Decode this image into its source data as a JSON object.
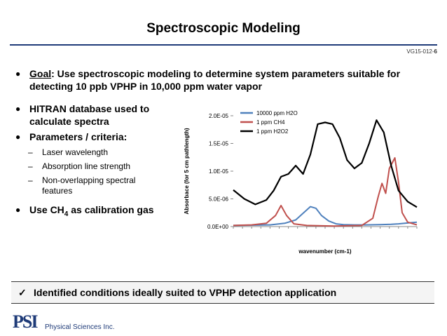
{
  "title": "Spectroscopic Modeling",
  "slide_id_prefix": "VG15-012-",
  "slide_id_num": "6",
  "goal": {
    "label": "Goal",
    "text": ": Use spectroscopic modeling to determine system parameters suitable for detecting 10 ppb VPHP in 10,000 ppm water vapor"
  },
  "bullets": {
    "b1": "HITRAN database used to calculate spectra",
    "b2": "Parameters / criteria:",
    "sub1": "Laser wavelength",
    "sub2": "Absorption line strength",
    "sub3": "Non-overlapping spectral features",
    "b3_pre": "Use CH",
    "b3_sub": "4",
    "b3_post": " as calibration gas"
  },
  "bottom_statement": "Identified conditions ideally suited to VPHP detection application",
  "footer": {
    "logo": "PSI",
    "company": "Physical Sciences Inc."
  },
  "icons": {
    "bullet": "bullet-dot-icon",
    "check": "checkmark-icon"
  },
  "colors": {
    "h2o": "#4f81bd",
    "ch4": "#c0504d",
    "h2o2": "#000000",
    "accent": "#1f3b78"
  },
  "chart_data": {
    "type": "line",
    "title": "",
    "xlabel": "wavenumber (cm-1)",
    "ylabel": "Absorbace (for 5 cm pathlength)",
    "ylim": [
      0,
      2e-05
    ],
    "yticks": [
      "0.0E+00",
      "5.0E-06",
      "1.0E-05",
      "1.5E-05",
      "2.0E-05"
    ],
    "ytick_values": [
      0,
      5e-06,
      1e-05,
      1.5e-05,
      2e-05
    ],
    "xlim": [
      0,
      100
    ],
    "legend_position": "top-left",
    "series": [
      {
        "name": "10000 ppm H2O",
        "color": "#4f81bd",
        "x": [
          0,
          10,
          20,
          28,
          34,
          38,
          42,
          45,
          48,
          52,
          56,
          60,
          66,
          72,
          80,
          86,
          90,
          95,
          100
        ],
        "y": [
          2e-07,
          2.5e-07,
          3e-07,
          6e-07,
          1.2e-06,
          2.4e-06,
          3.6e-06,
          3.3e-06,
          2e-06,
          1e-06,
          5e-07,
          3.5e-07,
          3e-07,
          3e-07,
          3.5e-07,
          4e-07,
          5e-07,
          6.5e-07,
          8e-07
        ]
      },
      {
        "name": "1 ppm CH4",
        "color": "#c0504d",
        "x": [
          0,
          10,
          18,
          23,
          26,
          29,
          33,
          40,
          55,
          70,
          76,
          79,
          81,
          83,
          85,
          88,
          90,
          92,
          95,
          100
        ],
        "y": [
          2e-07,
          3e-07,
          6e-07,
          2e-06,
          3.8e-06,
          2e-06,
          5e-07,
          2e-07,
          1e-07,
          2e-07,
          1.5e-06,
          5.5e-06,
          7.8e-06,
          6e-06,
          1.05e-05,
          1.24e-05,
          8e-06,
          2.5e-06,
          8e-07,
          3e-07
        ]
      },
      {
        "name": "1 ppm H2O2",
        "color": "#000000",
        "x": [
          0,
          6,
          12,
          18,
          22,
          26,
          30,
          34,
          38,
          42,
          46,
          50,
          54,
          58,
          62,
          66,
          70,
          74,
          78,
          82,
          86,
          90,
          95,
          100
        ],
        "y": [
          6.6e-06,
          5e-06,
          4e-06,
          4.8e-06,
          6.5e-06,
          9e-06,
          9.5e-06,
          1.1e-05,
          9.5e-06,
          1.3e-05,
          1.85e-05,
          1.88e-05,
          1.85e-05,
          1.6e-05,
          1.2e-05,
          1.05e-05,
          1.15e-05,
          1.5e-05,
          1.92e-05,
          1.7e-05,
          1.1e-05,
          6.5e-06,
          4.5e-06,
          3.5e-06
        ]
      }
    ]
  }
}
